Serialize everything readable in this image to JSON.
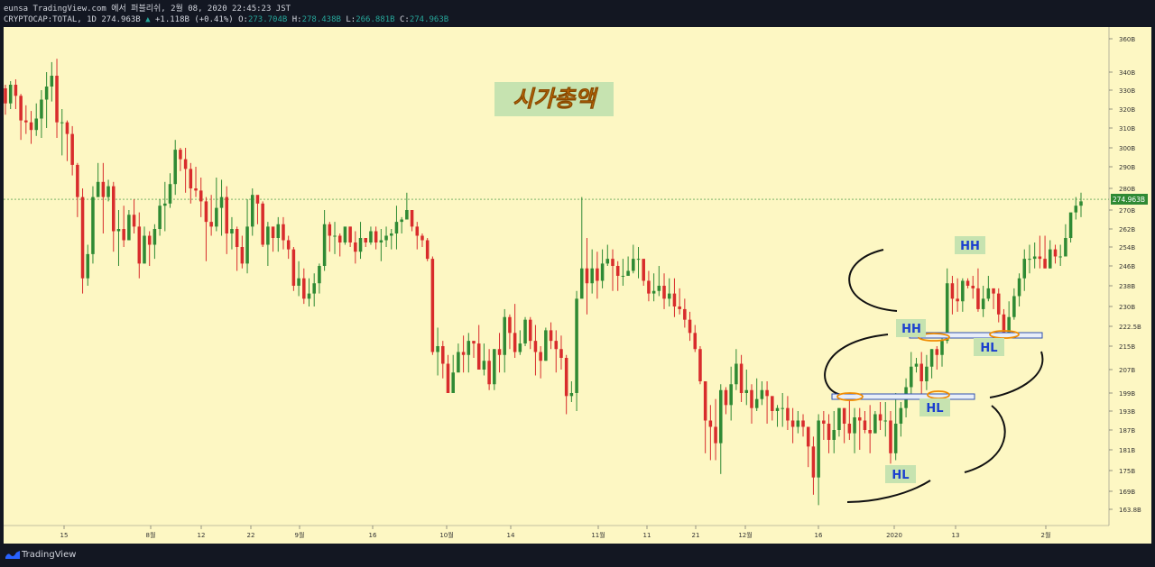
{
  "header": {
    "line1": "eunsa TradingView.com 에서 퍼블리쉬, 2월 08, 2020 22:45:23 JST",
    "symbol": "CRYPTOCAP:TOTAL, 1D",
    "last": "274.963B",
    "change_arrow": "▲",
    "change": "+1.118B (+0.41%)",
    "o_label": "O:",
    "o_value": "273.704B",
    "h_label": "H:",
    "h_value": "278.438B",
    "l_label": "L:",
    "l_value": "266.881B",
    "c_label": "C:",
    "c_value": "274.963B"
  },
  "footer": {
    "brand": "TradingView"
  },
  "colors": {
    "background": "#fdf7c3",
    "up": "#2f8a34",
    "down": "#d82c2c",
    "accent": "#26a69a",
    "annotation_text": "#1a3fcf",
    "annotation_bg": "#c6e3b0",
    "title_text": "#e8830f"
  },
  "chart_data": {
    "type": "candlestick",
    "title": "시가총액",
    "price_label": "274.963B",
    "y_ticks": [
      "360B",
      "340B",
      "330B",
      "320B",
      "310B",
      "300B",
      "290B",
      "280B",
      "270B",
      "262B",
      "254B",
      "246B",
      "238B",
      "230B",
      "222.5B",
      "215B",
      "207B",
      "199B",
      "193B",
      "187B",
      "181B",
      "175B",
      "169B",
      "163.8B"
    ],
    "x_ticks": [
      "15",
      "8월",
      "12",
      "22",
      "9월",
      "16",
      "10월",
      "14",
      "11월",
      "11",
      "21",
      "12월",
      "16",
      "2020",
      "13",
      "2월"
    ],
    "annotations": [
      "HH",
      "HH",
      "HL",
      "HL",
      "HL"
    ],
    "candles": [
      [
        331,
        323,
        333,
        317
      ],
      [
        323,
        333,
        335,
        320
      ],
      [
        333,
        327,
        336,
        320
      ],
      [
        327,
        314,
        328,
        304
      ],
      [
        314,
        313,
        322,
        307
      ],
      [
        313,
        309,
        319,
        302
      ],
      [
        309,
        315,
        323,
        306
      ],
      [
        315,
        325,
        330,
        305
      ],
      [
        325,
        332,
        340,
        310
      ],
      [
        332,
        338,
        346,
        324
      ],
      [
        338,
        313,
        348,
        305
      ],
      [
        313,
        313,
        320,
        296
      ],
      [
        313,
        307,
        314,
        293
      ],
      [
        307,
        291,
        311,
        286
      ],
      [
        291,
        276,
        292,
        267
      ],
      [
        276,
        241,
        280,
        235
      ],
      [
        241,
        251,
        255,
        238
      ],
      [
        251,
        276,
        281,
        247
      ],
      [
        276,
        283,
        292,
        276
      ],
      [
        283,
        276,
        292,
        260
      ],
      [
        276,
        281,
        284,
        274
      ],
      [
        281,
        261,
        283,
        252
      ],
      [
        261,
        262,
        270,
        246
      ],
      [
        262,
        257,
        272,
        254
      ],
      [
        257,
        268,
        270,
        257
      ],
      [
        268,
        263,
        275,
        260
      ],
      [
        263,
        247,
        269,
        241
      ],
      [
        247,
        259,
        263,
        247
      ],
      [
        259,
        255,
        261,
        246
      ],
      [
        255,
        262,
        264,
        249
      ],
      [
        262,
        272,
        275,
        259
      ],
      [
        272,
        273,
        283,
        261
      ],
      [
        273,
        282,
        287,
        271
      ],
      [
        282,
        299,
        304,
        277
      ],
      [
        299,
        294,
        300,
        288
      ],
      [
        294,
        289,
        300,
        278
      ],
      [
        289,
        280,
        292,
        273
      ],
      [
        280,
        279,
        290,
        276
      ],
      [
        279,
        274,
        285,
        267
      ],
      [
        274,
        265,
        276,
        248
      ],
      [
        265,
        263,
        277,
        259
      ],
      [
        263,
        271,
        285,
        261
      ],
      [
        271,
        276,
        284,
        259
      ],
      [
        276,
        260,
        281,
        251
      ],
      [
        260,
        262,
        267,
        253
      ],
      [
        262,
        254,
        263,
        244
      ],
      [
        254,
        247,
        259,
        245
      ],
      [
        247,
        263,
        275,
        243
      ],
      [
        263,
        277,
        280,
        259
      ],
      [
        277,
        273,
        275,
        264
      ],
      [
        273,
        255,
        274,
        254
      ],
      [
        255,
        263,
        265,
        246
      ],
      [
        263,
        258,
        259,
        252
      ],
      [
        258,
        264,
        267,
        252
      ],
      [
        264,
        257,
        267,
        253
      ],
      [
        257,
        253,
        259,
        249
      ],
      [
        253,
        238,
        254,
        236
      ],
      [
        238,
        241,
        248,
        234
      ],
      [
        241,
        233,
        245,
        231
      ],
      [
        233,
        235,
        241,
        230
      ],
      [
        235,
        239,
        243,
        230
      ],
      [
        239,
        246,
        247,
        235
      ],
      [
        246,
        264,
        270,
        244
      ],
      [
        264,
        259,
        265,
        252
      ],
      [
        259,
        259,
        265,
        251
      ],
      [
        259,
        256,
        260,
        250
      ],
      [
        256,
        263,
        262,
        255
      ],
      [
        263,
        256,
        263,
        254
      ],
      [
        256,
        252,
        261,
        247
      ],
      [
        252,
        258,
        265,
        249
      ],
      [
        258,
        256,
        256,
        254
      ],
      [
        256,
        261,
        263,
        255
      ],
      [
        261,
        256,
        263,
        253
      ],
      [
        256,
        257,
        262,
        248
      ],
      [
        257,
        259,
        263,
        254
      ],
      [
        259,
        260,
        262,
        253
      ],
      [
        260,
        265,
        272,
        253
      ],
      [
        265,
        266,
        267,
        260
      ],
      [
        266,
        270,
        278,
        266
      ],
      [
        270,
        263,
        270,
        261
      ],
      [
        263,
        259,
        265,
        253
      ],
      [
        259,
        257,
        260,
        254
      ],
      [
        257,
        249,
        258,
        248
      ],
      [
        249,
        213,
        250,
        212
      ],
      [
        213,
        215,
        222,
        205
      ],
      [
        215,
        209,
        217,
        204
      ],
      [
        209,
        199,
        212,
        199
      ],
      [
        199,
        206,
        212,
        200
      ],
      [
        206,
        213,
        216,
        207
      ],
      [
        213,
        212,
        219,
        206
      ],
      [
        212,
        217,
        220,
        206
      ],
      [
        217,
        216,
        217,
        211
      ],
      [
        216,
        207,
        223,
        207
      ],
      [
        207,
        210,
        216,
        205
      ],
      [
        210,
        202,
        214,
        200
      ],
      [
        202,
        214,
        214,
        200
      ],
      [
        214,
        212,
        220,
        206
      ],
      [
        212,
        226,
        229,
        206
      ],
      [
        226,
        220,
        227,
        214
      ],
      [
        220,
        213,
        231,
        211
      ],
      [
        213,
        216,
        221,
        212
      ],
      [
        216,
        225,
        226,
        215
      ],
      [
        225,
        217,
        226,
        214
      ],
      [
        217,
        213,
        223,
        205
      ],
      [
        213,
        210,
        215,
        204
      ],
      [
        210,
        221,
        222,
        210
      ],
      [
        221,
        217,
        224,
        214
      ],
      [
        217,
        214,
        221,
        206
      ],
      [
        214,
        211,
        219,
        207
      ],
      [
        211,
        198,
        212,
        192
      ],
      [
        198,
        199,
        203,
        196
      ],
      [
        199,
        233,
        236,
        193
      ],
      [
        233,
        245,
        276,
        244
      ],
      [
        245,
        239,
        258,
        227
      ],
      [
        239,
        245,
        253,
        235
      ],
      [
        245,
        240,
        252,
        233
      ],
      [
        240,
        247,
        253,
        237
      ],
      [
        247,
        249,
        255,
        246
      ],
      [
        249,
        246,
        253,
        236
      ],
      [
        246,
        242,
        248,
        236
      ],
      [
        242,
        242,
        249,
        238
      ],
      [
        242,
        244,
        250,
        243
      ],
      [
        244,
        249,
        255,
        243
      ],
      [
        249,
        249,
        254,
        241
      ],
      [
        249,
        240,
        247,
        238
      ],
      [
        240,
        235,
        244,
        232
      ],
      [
        235,
        236,
        243,
        232
      ],
      [
        236,
        238,
        246,
        234
      ],
      [
        238,
        233,
        243,
        229
      ],
      [
        233,
        235,
        241,
        230
      ],
      [
        235,
        230,
        241,
        226
      ],
      [
        230,
        229,
        237,
        227
      ],
      [
        229,
        225,
        233,
        222
      ],
      [
        225,
        220,
        228,
        217
      ],
      [
        220,
        214,
        223,
        213
      ],
      [
        214,
        203,
        215,
        202
      ],
      [
        203,
        190,
        203,
        180
      ],
      [
        190,
        188,
        195,
        178
      ],
      [
        188,
        183,
        197,
        178
      ],
      [
        183,
        200,
        202,
        174
      ],
      [
        200,
        195,
        201,
        192
      ],
      [
        195,
        202,
        208,
        190
      ],
      [
        202,
        209,
        214,
        200
      ],
      [
        209,
        199,
        212,
        196
      ],
      [
        199,
        200,
        207,
        195
      ],
      [
        200,
        194,
        202,
        189
      ],
      [
        194,
        197,
        204,
        193
      ],
      [
        197,
        200,
        203,
        195
      ],
      [
        200,
        198,
        203,
        189
      ],
      [
        198,
        193,
        197,
        190
      ],
      [
        193,
        194,
        195,
        188
      ],
      [
        194,
        194,
        199,
        188
      ],
      [
        194,
        190,
        198,
        187
      ],
      [
        190,
        188,
        194,
        183
      ],
      [
        188,
        190,
        193,
        186
      ],
      [
        190,
        188,
        192,
        185
      ],
      [
        188,
        182,
        188,
        176
      ],
      [
        182,
        173,
        185,
        168
      ],
      [
        173,
        190,
        192,
        165
      ],
      [
        190,
        189,
        193,
        184
      ],
      [
        189,
        184,
        192,
        180
      ],
      [
        184,
        187,
        193,
        180
      ],
      [
        187,
        194,
        194,
        185
      ],
      [
        194,
        189,
        194,
        183
      ],
      [
        189,
        186,
        197,
        184
      ],
      [
        186,
        191,
        194,
        180
      ],
      [
        191,
        190,
        194,
        181
      ],
      [
        190,
        187,
        193,
        186
      ],
      [
        187,
        186,
        195,
        180
      ],
      [
        186,
        192,
        193,
        186
      ],
      [
        192,
        190,
        196,
        187
      ],
      [
        190,
        190,
        196,
        185
      ],
      [
        190,
        180,
        193,
        177
      ],
      [
        180,
        189,
        199,
        178
      ],
      [
        189,
        194,
        196,
        185
      ],
      [
        194,
        201,
        204,
        191
      ],
      [
        201,
        208,
        213,
        198
      ],
      [
        208,
        209,
        211,
        206
      ],
      [
        209,
        203,
        213,
        198
      ],
      [
        203,
        208,
        212,
        200
      ],
      [
        208,
        214,
        214,
        204
      ],
      [
        214,
        212,
        215,
        207
      ],
      [
        212,
        217,
        219,
        208
      ],
      [
        217,
        239,
        245,
        216
      ],
      [
        239,
        233,
        242,
        227
      ],
      [
        233,
        232,
        241,
        228
      ],
      [
        232,
        240,
        241,
        228
      ],
      [
        240,
        238,
        241,
        237
      ],
      [
        238,
        237,
        242,
        233
      ],
      [
        237,
        229,
        245,
        228
      ],
      [
        229,
        233,
        238,
        226
      ],
      [
        233,
        237,
        242,
        232
      ],
      [
        237,
        235,
        236,
        229
      ],
      [
        235,
        227,
        237,
        224
      ],
      [
        227,
        220,
        229,
        219
      ],
      [
        220,
        226,
        232,
        219
      ],
      [
        226,
        234,
        237,
        225
      ],
      [
        234,
        241,
        243,
        230
      ],
      [
        241,
        249,
        253,
        236
      ],
      [
        249,
        249,
        255,
        243
      ],
      [
        249,
        250,
        256,
        245
      ],
      [
        250,
        249,
        259,
        245
      ],
      [
        249,
        245,
        259,
        245
      ],
      [
        245,
        253,
        257,
        245
      ],
      [
        253,
        250,
        255,
        247
      ],
      [
        250,
        250,
        255,
        246
      ],
      [
        250,
        258,
        264,
        250
      ],
      [
        258,
        269,
        268,
        256
      ],
      [
        269,
        272,
        276,
        266
      ],
      [
        272,
        274,
        278,
        267
      ]
    ]
  }
}
